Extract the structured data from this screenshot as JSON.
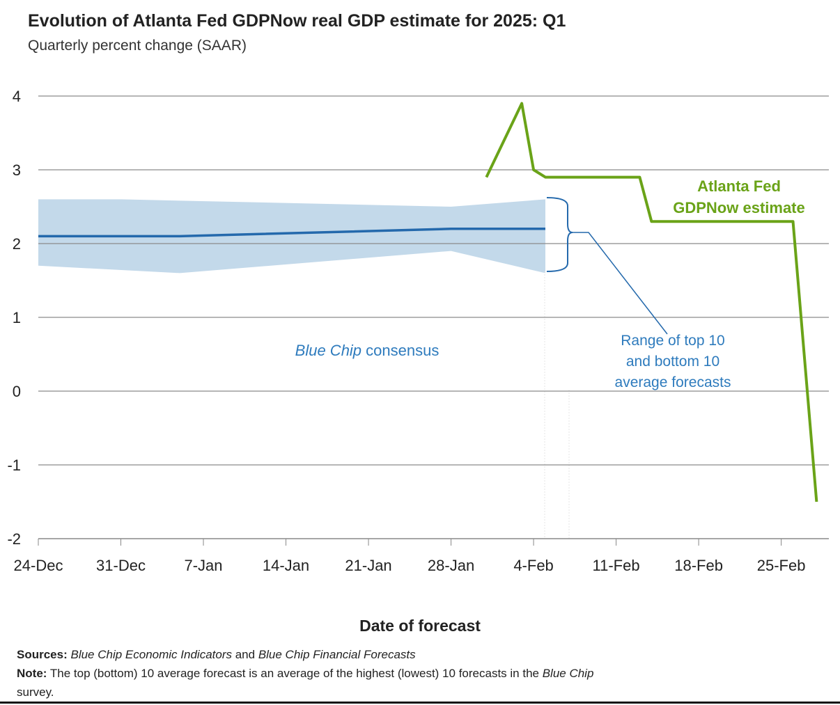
{
  "chart_data": {
    "type": "line",
    "title": "Evolution of Atlanta Fed GDPNow real GDP estimate for 2025: Q1",
    "subtitle": "Quarterly percent change (SAAR)",
    "xlabel": "Date of forecast",
    "ylabel": "",
    "ylim": [
      -2,
      4
    ],
    "yticks": [
      "4",
      "3",
      "2",
      "1",
      "0",
      "-1",
      "-2"
    ],
    "ytick_values": [
      4,
      3,
      2,
      1,
      0,
      -1,
      -2
    ],
    "x_unit": "days since 24-Dec-2024",
    "xlim": [
      0,
      67
    ],
    "xticks": [
      "24-Dec",
      "31-Dec",
      "7-Jan",
      "14-Jan",
      "21-Jan",
      "28-Jan",
      "4-Feb",
      "11-Feb",
      "18-Feb",
      "25-Feb"
    ],
    "xtick_values": [
      0,
      7,
      14,
      21,
      28,
      35,
      42,
      49,
      56,
      63
    ],
    "grid": true,
    "series": [
      {
        "name": "Atlanta Fed GDPNow estimate",
        "color": "#6aa318",
        "x": [
          38,
          41,
          42,
          43,
          51,
          52,
          64,
          66
        ],
        "y": [
          2.9,
          3.9,
          3.0,
          2.9,
          2.9,
          2.3,
          2.3,
          -1.5
        ]
      },
      {
        "name": "Blue Chip consensus",
        "color": "#2469ac",
        "x": [
          0,
          12,
          35,
          43
        ],
        "y": [
          2.1,
          2.1,
          2.2,
          2.2
        ]
      }
    ],
    "band": {
      "name": "Range of top 10 and bottom 10 average forecasts",
      "color": "#c3d9ea",
      "x": [
        0,
        7,
        35,
        43
      ],
      "upper": [
        2.6,
        2.6,
        2.5,
        2.6
      ],
      "x_lower": [
        0,
        12,
        35,
        43
      ],
      "lower": [
        1.7,
        1.6,
        1.9,
        1.6
      ]
    },
    "annotations": {
      "gdpnow_label_1": "Atlanta Fed",
      "gdpnow_label_2": "GDPNow estimate",
      "bluechip_italic": "Blue Chip",
      "bluechip_rest": " consensus",
      "range_1": "Range of top 10",
      "range_2": "and bottom 10",
      "range_3": "average forecasts"
    }
  },
  "footer": {
    "sources_label": "Sources:",
    "sources_1": "Blue Chip Economic Indicators",
    "sources_and": " and ",
    "sources_2": "Blue Chip Financial Forecasts",
    "note_label": "Note:",
    "note_text": " The top (bottom) 10 average forecast is an average of the highest (lowest) 10 forecasts in the ",
    "note_italic": "Blue Chip",
    "note_end": "survey."
  }
}
